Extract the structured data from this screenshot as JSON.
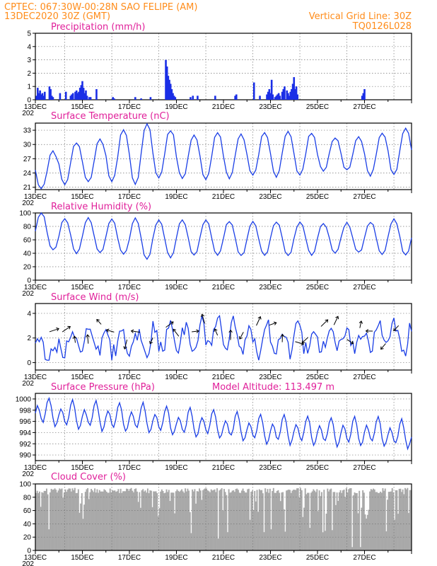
{
  "header": {
    "line1_left": "CPTEC:   067:30W-00:28N  SAO FELIPE (AM)",
    "line2_left": "13DEC2020 30Z (GMT)",
    "line1_right": "Vertical Grid Line: 30Z",
    "line2_right": "TQ0126L028"
  },
  "x_axis": {
    "days": 16,
    "tick_labels": [
      "13DEC",
      "15DEC",
      "17DEC",
      "19DEC",
      "21DEC",
      "23DEC",
      "25DEC",
      "27DEC"
    ],
    "year_stub": "202"
  },
  "colors": {
    "header": "#ff8c1a",
    "panel_title": "#e0209a",
    "series": "#1a3ee6",
    "bars": "#1a2ee6",
    "cloud": "#a9a9a9"
  },
  "chart_data": [
    {
      "type": "bar",
      "title": "Precipitation (mm/h)",
      "ylim": [
        0,
        5
      ],
      "yticks": [
        0,
        1,
        2,
        3,
        4,
        5
      ],
      "grid": true,
      "x_unit": "days since 13DEC 00Z",
      "x": [
        0.05,
        0.1,
        0.15,
        0.2,
        0.25,
        0.3,
        0.35,
        0.4,
        0.6,
        0.65,
        0.7,
        0.75,
        1.05,
        1.3,
        1.5,
        1.55,
        1.6,
        1.7,
        1.75,
        1.8,
        1.85,
        1.9,
        1.95,
        2.0,
        2.05,
        2.1,
        2.15,
        2.2,
        2.3,
        2.35,
        2.6,
        3.3,
        3.35,
        4.25,
        4.5,
        4.9,
        5.55,
        5.6,
        5.65,
        5.7,
        5.75,
        5.8,
        5.85,
        5.9,
        5.95,
        6.6,
        6.7,
        6.9,
        7.65,
        8.5,
        8.55,
        9.3,
        9.55,
        9.85,
        9.9,
        9.95,
        10.0,
        10.05,
        10.1,
        10.2,
        10.25,
        10.3,
        10.35,
        10.4,
        10.5,
        10.55,
        10.6,
        10.7,
        10.75,
        10.8,
        10.85,
        10.9,
        10.95,
        11.0,
        11.05,
        11.1,
        11.15,
        13.9,
        13.95,
        14.0
      ],
      "values": [
        0.3,
        0.9,
        0.5,
        0.7,
        0.4,
        0.5,
        0.3,
        0.6,
        1.0,
        0.8,
        0.3,
        0.2,
        0.5,
        0.6,
        0.3,
        0.4,
        0.5,
        0.6,
        0.7,
        0.5,
        0.6,
        0.9,
        1.1,
        1.4,
        0.9,
        0.5,
        0.7,
        0.3,
        0.2,
        0.2,
        0.8,
        0.2,
        0.1,
        0.2,
        0.1,
        0.2,
        3.0,
        2.5,
        1.8,
        1.5,
        1.2,
        0.8,
        0.5,
        0.3,
        0.2,
        0.2,
        0.3,
        0.3,
        0.3,
        0.3,
        0.4,
        1.3,
        0.3,
        0.4,
        0.6,
        0.8,
        0.5,
        1.5,
        0.4,
        0.2,
        0.3,
        0.4,
        0.5,
        0.3,
        0.6,
        0.8,
        1.0,
        0.7,
        0.5,
        0.3,
        0.6,
        0.8,
        1.2,
        1.7,
        0.8,
        1.0,
        0.4,
        0.3,
        0.5,
        0.8
      ]
    },
    {
      "type": "line",
      "title": "Surface Temperature (nC)",
      "ylim": [
        20.5,
        34.5
      ],
      "yticks": [
        21,
        24,
        27,
        30,
        33
      ],
      "grid": true,
      "amplitude": [
        4.0,
        4.4,
        4.5,
        5.5,
        6.5,
        5.0,
        4.6,
        5.0,
        4.6,
        4.5,
        4.8,
        4.5,
        3.5,
        3.5,
        4.5,
        5.0,
        5.0
      ],
      "mean": [
        24.5,
        26.0,
        26.5,
        27.5,
        28.0,
        28.0,
        27.5,
        27.5,
        27.5,
        28.0,
        28.0,
        28.0,
        28.0,
        28.0,
        28.0,
        28.5,
        29.0
      ]
    },
    {
      "type": "line",
      "title": "Relative Humidity (%)",
      "ylim": [
        0,
        100
      ],
      "yticks": [
        0,
        20,
        40,
        60,
        80,
        100
      ],
      "grid": true,
      "amplitude": [
        -28,
        -26,
        -26,
        -26,
        -30,
        -28,
        -26,
        -26,
        -26,
        -25,
        -25,
        -24,
        -22,
        -22,
        -24,
        -26,
        -26
      ],
      "mean": [
        72,
        66,
        66,
        64,
        62,
        62,
        64,
        63,
        62,
        62,
        62,
        62,
        63,
        63,
        63,
        64,
        64
      ]
    },
    {
      "type": "line",
      "title": "Surface Wind (m/s)",
      "ylim": [
        -0.6,
        4.8
      ],
      "yticks": [
        0,
        2,
        4
      ],
      "grid": true,
      "has_vectors": true,
      "amplitude": [
        0.5,
        0.6,
        0.7,
        0.8,
        0.7,
        0.9,
        0.9,
        1.0,
        1.2,
        1.1,
        1.0,
        0.9,
        0.8,
        0.9,
        1.0,
        1.1,
        1.0
      ],
      "mean": [
        1.0,
        1.6,
        1.7,
        1.6,
        1.7,
        2.0,
        2.1,
        2.3,
        2.2,
        1.9,
        1.8,
        1.8,
        1.9,
        2.0,
        2.0,
        2.0,
        2.1
      ]
    },
    {
      "type": "line",
      "title": "Surface Pressure (hPa)",
      "annotation": "Model Altitude: 113.497 m",
      "ylim": [
        989,
        1001
      ],
      "yticks": [
        990,
        992,
        994,
        996,
        998,
        1000
      ],
      "grid": true,
      "mean": [
        997.5,
        997.0,
        996.8,
        996.6,
        996.5,
        996.0,
        995.6,
        995.4,
        995.0,
        994.5,
        994.3,
        994.2,
        994.0,
        994.0,
        994.0,
        993.6,
        993.2
      ]
    },
    {
      "type": "bar",
      "title": "Cloud Cover (%)",
      "ylim": [
        0,
        100
      ],
      "yticks": [
        0,
        20,
        40,
        60,
        80,
        100
      ],
      "grid": true,
      "base_level": 90
    }
  ]
}
